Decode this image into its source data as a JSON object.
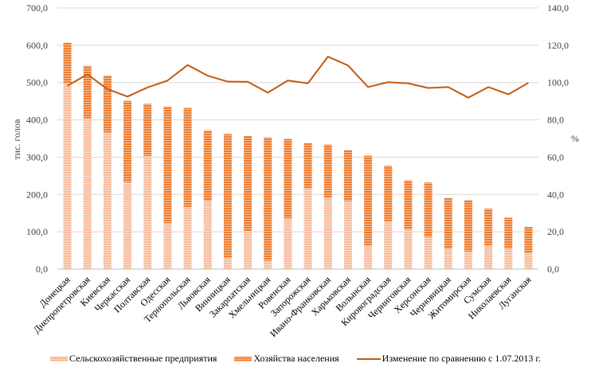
{
  "chart_data": {
    "type": "bar",
    "stacked": true,
    "title": "",
    "xlabel": "",
    "ylabel": "тис. голов",
    "y2label": "%",
    "ylim": [
      0,
      700
    ],
    "y2lim": [
      0,
      140
    ],
    "yticks": [
      "0,0",
      "100,0",
      "200,0",
      "300,0",
      "400,0",
      "500,0",
      "600,0",
      "700,0"
    ],
    "y2ticks": [
      "0,0",
      "20,0",
      "40,0",
      "60,0",
      "80,0",
      "100,0",
      "120,0",
      "140,0"
    ],
    "grid": true,
    "legend_position": "bottom",
    "categories": [
      "Донецкая",
      "Днепропетровская",
      "Киевская",
      "Черкасская",
      "Полтавская",
      "Одесская",
      "Тернопольская",
      "Львовская",
      "Винницкая",
      "Закарпатская",
      "Хмельницкая",
      "Ровенская",
      "Запорожская",
      "Ивано-Франковская",
      "Харьковская",
      "Волынская",
      "Кировоградская",
      "Черниговская",
      "Херсонская",
      "Черновицкая",
      "Житомирская",
      "Сумская",
      "Николаевская",
      "Луганская"
    ],
    "series": [
      {
        "name": "Сельскохозяйственные предприятия",
        "type": "bar",
        "axis": "left",
        "color": "#f8cbad",
        "values": [
          498,
          404,
          366,
          233,
          303,
          123,
          166,
          183,
          30,
          102,
          22,
          136,
          216,
          192,
          182,
          64,
          128,
          106,
          86,
          55,
          47,
          64,
          55,
          43
        ]
      },
      {
        "name": "Хозяйства населения",
        "type": "bar",
        "axis": "left",
        "color": "#ed7d31",
        "values": [
          109,
          141,
          153,
          218,
          140,
          313,
          266,
          189,
          332,
          255,
          331,
          213,
          122,
          142,
          137,
          240,
          149,
          132,
          146,
          136,
          138,
          98,
          83,
          70
        ]
      },
      {
        "name": "Изменение по сравнению с 1.07.2013 г.",
        "type": "line",
        "axis": "right",
        "color": "#c55a11",
        "values": [
          98.3,
          104.4,
          96.5,
          92.5,
          97.4,
          101.1,
          109.4,
          103.7,
          100.5,
          100.4,
          94.6,
          101.1,
          99.6,
          113.9,
          109.2,
          97.6,
          100.2,
          99.6,
          97.1,
          97.6,
          91.9,
          97.6,
          93.7,
          99.9
        ]
      }
    ]
  }
}
